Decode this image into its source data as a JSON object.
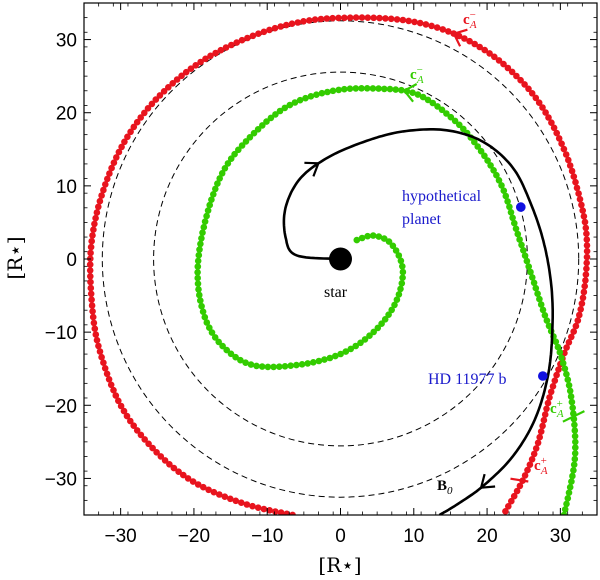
{
  "chart_data": {
    "type": "scatter",
    "title": "",
    "xlabel": "[R⋆]",
    "ylabel": "[R⋆]",
    "xlim": [
      -35,
      35
    ],
    "ylim": [
      -35,
      35
    ],
    "xticks": [
      -30,
      -20,
      -10,
      0,
      10,
      20,
      30
    ],
    "yticks": [
      -30,
      -20,
      -10,
      0,
      10,
      20,
      30
    ],
    "xtick_labels": [
      "−30",
      "−20",
      "−10",
      "0",
      "10",
      "20",
      "30"
    ],
    "ytick_labels": [
      "−30",
      "−20",
      "−10",
      "0",
      "10",
      "20",
      "30"
    ],
    "grid": false,
    "colors": {
      "alfven_outer": "#e8141e",
      "alfven_inner": "#33cc00",
      "field_line": "#000000",
      "circles": "#000000",
      "planets": "#1010e0",
      "star": "#000000"
    },
    "series": [
      {
        "name": "c_A outer spiral (red dots)",
        "style": "dotted",
        "points": [
          [
            22.5,
            -34.5
          ],
          [
            25.0,
            -30.0
          ],
          [
            27.0,
            -25.0
          ],
          [
            28.5,
            -19.0
          ],
          [
            30.5,
            -13.0
          ],
          [
            32.5,
            -8.0
          ],
          [
            33.5,
            -2.0
          ],
          [
            33.5,
            4.0
          ],
          [
            32.2,
            10.0
          ],
          [
            30.5,
            15.0
          ],
          [
            28.0,
            20.0
          ],
          [
            25.0,
            24.0
          ],
          [
            20.5,
            28.0
          ],
          [
            15.0,
            31.0
          ],
          [
            9.0,
            32.6
          ],
          [
            2.0,
            33.0
          ],
          [
            -5.0,
            32.5
          ],
          [
            -12.0,
            30.5
          ],
          [
            -19.0,
            27.0
          ],
          [
            -25.0,
            22.0
          ],
          [
            -29.5,
            16.0
          ],
          [
            -32.5,
            9.0
          ],
          [
            -34.0,
            2.0
          ],
          [
            -34.0,
            -5.0
          ],
          [
            -33.0,
            -12.0
          ],
          [
            -30.0,
            -20.0
          ],
          [
            -25.5,
            -26.0
          ],
          [
            -20.0,
            -30.5
          ],
          [
            -13.0,
            -33.5
          ],
          [
            -6.5,
            -35.0
          ]
        ]
      },
      {
        "name": "c_A inner spiral (green dots)",
        "style": "dotted",
        "points": [
          [
            30.5,
            -35.0
          ],
          [
            32.0,
            -27.0
          ],
          [
            31.5,
            -19.0
          ],
          [
            30.0,
            -13.0
          ],
          [
            28.0,
            -8.0
          ],
          [
            26.0,
            -2.0
          ],
          [
            24.0,
            4.0
          ],
          [
            22.0,
            10.0
          ],
          [
            19.0,
            15.0
          ],
          [
            15.5,
            19.0
          ],
          [
            10.5,
            22.5
          ],
          [
            5.0,
            23.3
          ],
          [
            -1.0,
            23.0
          ],
          [
            -7.0,
            21.0
          ],
          [
            -12.0,
            17.0
          ],
          [
            -16.0,
            12.0
          ],
          [
            -18.5,
            5.0
          ],
          [
            -19.5,
            -2.0
          ],
          [
            -18.5,
            -8.0
          ],
          [
            -16.0,
            -12.0
          ],
          [
            -12.0,
            -14.5
          ],
          [
            -6.0,
            -14.5
          ],
          [
            0.0,
            -13.0
          ],
          [
            4.5,
            -10.0
          ],
          [
            7.5,
            -6.0
          ],
          [
            8.5,
            -1.5
          ],
          [
            7.0,
            2.0
          ],
          [
            4.5,
            3.2
          ],
          [
            2.0,
            2.5
          ]
        ]
      },
      {
        "name": "B0 magnetic field line (black)",
        "style": "line",
        "points": [
          [
            0.0,
            0.0
          ],
          [
            -6.0,
            0.5
          ],
          [
            -7.5,
            3.0
          ],
          [
            -7.5,
            7.0
          ],
          [
            -5.5,
            11.0
          ],
          [
            -1.5,
            14.0
          ],
          [
            4.0,
            16.3
          ],
          [
            9.0,
            17.5
          ],
          [
            14.5,
            17.6
          ],
          [
            19.5,
            16.0
          ],
          [
            23.5,
            12.5
          ],
          [
            26.0,
            7.5
          ],
          [
            27.8,
            2.0
          ],
          [
            28.8,
            -4.0
          ],
          [
            28.9,
            -10.0
          ],
          [
            28.3,
            -16.0
          ],
          [
            26.5,
            -22.0
          ],
          [
            23.5,
            -27.0
          ],
          [
            19.5,
            -31.0
          ],
          [
            16.0,
            -33.5
          ],
          [
            13.5,
            -35.0
          ]
        ]
      },
      {
        "name": "dashed circles",
        "style": "dashed",
        "radii": [
          25.5,
          32.5
        ]
      },
      {
        "name": "planets",
        "style": "markers",
        "points": [
          [
            24.6,
            7.1
          ],
          [
            27.6,
            -16.0
          ]
        ]
      },
      {
        "name": "star",
        "style": "marker",
        "points": [
          [
            0.0,
            0.0
          ]
        ]
      }
    ],
    "annotations": {
      "hypothetical_planet_line1": "hypothetical",
      "hypothetical_planet_line2": "planet",
      "hd_planet": "HD 11977 b",
      "star": "star",
      "b0_main": "B",
      "b0_sub": "0",
      "ca_main": "c",
      "ca_sub": "A",
      "ca_minus": "−",
      "ca_plus": "+"
    }
  }
}
